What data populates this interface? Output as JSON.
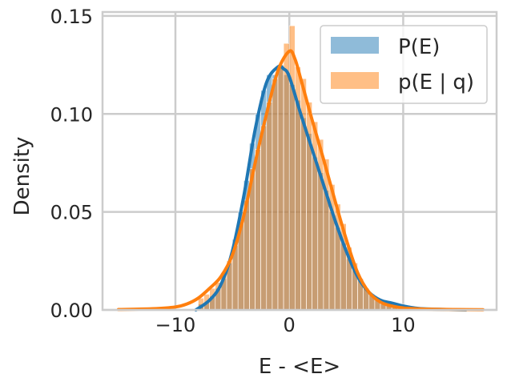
{
  "chart_data": {
    "type": "histogram+kde",
    "title": "",
    "xlabel": "E - <E>",
    "ylabel": "Density",
    "xlim": [
      -16.4,
      18.2
    ],
    "ylim": [
      0,
      0.152
    ],
    "xticks": [
      -10,
      0,
      10
    ],
    "xtick_labels": [
      "−10",
      "0",
      "10"
    ],
    "yticks": [
      0,
      0.05,
      0.1,
      0.15
    ],
    "ytick_labels": [
      "0.00",
      "0.05",
      "0.10",
      "0.15"
    ],
    "grid": true,
    "legend_position": "top-right",
    "bin_width": 0.5,
    "bin_start": -8,
    "series": [
      {
        "name": "P(E)",
        "color": "#1f77b4",
        "hist": [
          0.003,
          0.004,
          0.007,
          0.011,
          0.016,
          0.024,
          0.036,
          0.05,
          0.066,
          0.085,
          0.1,
          0.112,
          0.12,
          0.12,
          0.125,
          0.12,
          0.115,
          0.107,
          0.098,
          0.09,
          0.078,
          0.07,
          0.061,
          0.05,
          0.042,
          0.034,
          0.026,
          0.02,
          0.015,
          0.011,
          0.008,
          0.006,
          0.005,
          0.004,
          0.003,
          0.003,
          0.002,
          0.002,
          0.001,
          0.001
        ],
        "kde_x": [
          -8.2,
          -7,
          -6,
          -5,
          -4,
          -3,
          -2,
          -1,
          -0.5,
          0,
          1,
          2,
          3,
          4,
          5,
          6,
          7,
          8,
          9,
          10,
          11,
          12,
          14,
          15.5
        ],
        "kde_y": [
          0,
          0.005,
          0.013,
          0.03,
          0.058,
          0.092,
          0.116,
          0.124,
          0.123,
          0.119,
          0.1,
          0.082,
          0.064,
          0.046,
          0.03,
          0.017,
          0.009,
          0.005,
          0.0035,
          0.002,
          0.001,
          0.0005,
          0.0002,
          0
        ]
      },
      {
        "name": "p(E | q)",
        "color": "#ff7f0e",
        "hist": [
          0.006,
          0.008,
          0.011,
          0.014,
          0.019,
          0.025,
          0.033,
          0.045,
          0.056,
          0.072,
          0.082,
          0.094,
          0.106,
          0.118,
          0.125,
          0.136,
          0.145,
          0.124,
          0.118,
          0.106,
          0.096,
          0.087,
          0.077,
          0.064,
          0.054,
          0.044,
          0.032,
          0.024,
          0.016,
          0.011,
          0.008,
          0.005,
          0.003,
          0.002,
          0.002,
          0.001,
          0.001,
          0.001,
          0.0005,
          0.0005
        ],
        "kde_x": [
          -15,
          -12,
          -10,
          -9,
          -8,
          -7,
          -6,
          -5,
          -4,
          -3,
          -2,
          -1,
          0,
          0.5,
          1,
          2,
          3,
          4,
          5,
          6,
          7,
          8,
          9,
          10,
          12,
          17
        ],
        "kde_y": [
          0.0002,
          0.0006,
          0.0015,
          0.003,
          0.006,
          0.011,
          0.017,
          0.028,
          0.048,
          0.075,
          0.1,
          0.122,
          0.132,
          0.128,
          0.118,
          0.097,
          0.077,
          0.056,
          0.036,
          0.019,
          0.009,
          0.004,
          0.002,
          0.001,
          0.0004,
          0.0001
        ]
      }
    ]
  }
}
